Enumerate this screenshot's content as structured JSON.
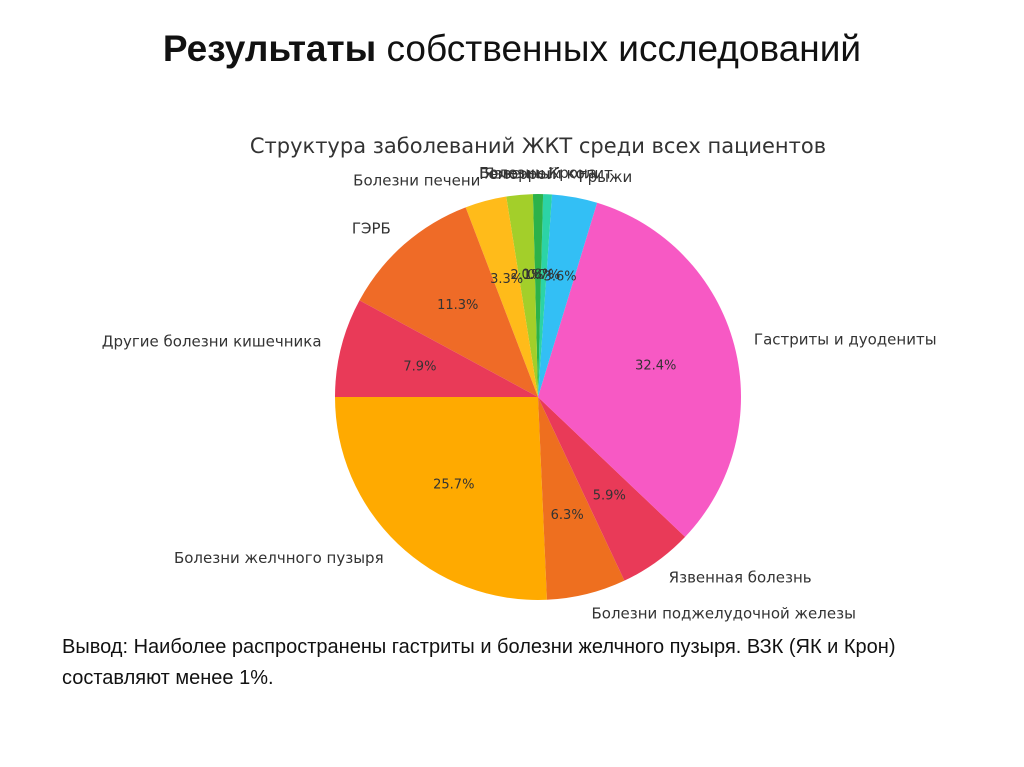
{
  "slide": {
    "title_bold": "Результаты",
    "title_rest": " собственных исследований",
    "conclusion": "Вывод: Наиболее распространены гастриты и болезни желчного пузыря. ВЗК (ЯК и Крон) составляют менее 1%."
  },
  "chart_data": {
    "type": "pie",
    "title": "Структура заболеваний ЖКТ среди всех пациентов",
    "start_angle_deg": 180,
    "direction": "counterclockwise",
    "slices": [
      {
        "label": "Болезни желчного пузыря",
        "value": 25.7,
        "pct_label": "25.7%",
        "color": "#FFAA00"
      },
      {
        "label": "Болезни поджелудочной железы",
        "value": 6.3,
        "pct_label": "6.3%",
        "color": "#EE6F1F"
      },
      {
        "label": "Язвенная болезнь",
        "value": 5.9,
        "pct_label": "5.9%",
        "color": "#E93A58"
      },
      {
        "label": "Гастриты и дуодениты",
        "value": 32.4,
        "pct_label": "32.4%",
        "color": "#F759C4"
      },
      {
        "label": "Грыжи",
        "value": 3.6,
        "pct_label": "3.6%",
        "color": "#33BFF5"
      },
      {
        "label": "Язвенный колит",
        "value": 0.7,
        "pct_label": "0.7%",
        "color": "#2CD3A6"
      },
      {
        "label": "Болезнь Крона",
        "value": 0.8,
        "pct_label": "0.8%",
        "color": "#2CB24A"
      },
      {
        "label": "Геморрой",
        "value": 2.1,
        "pct_label": "2.1%",
        "color": "#A3CF2A"
      },
      {
        "label": "Болезни печени",
        "value": 3.3,
        "pct_label": "3.3%",
        "color": "#FFBB1A"
      },
      {
        "label": "ГЭРБ",
        "value": 11.3,
        "pct_label": "11.3%",
        "color": "#EF6B27"
      },
      {
        "label": "Другие болезни кишечника",
        "value": 7.9,
        "pct_label": "7.9%",
        "color": "#E93A58"
      }
    ]
  }
}
